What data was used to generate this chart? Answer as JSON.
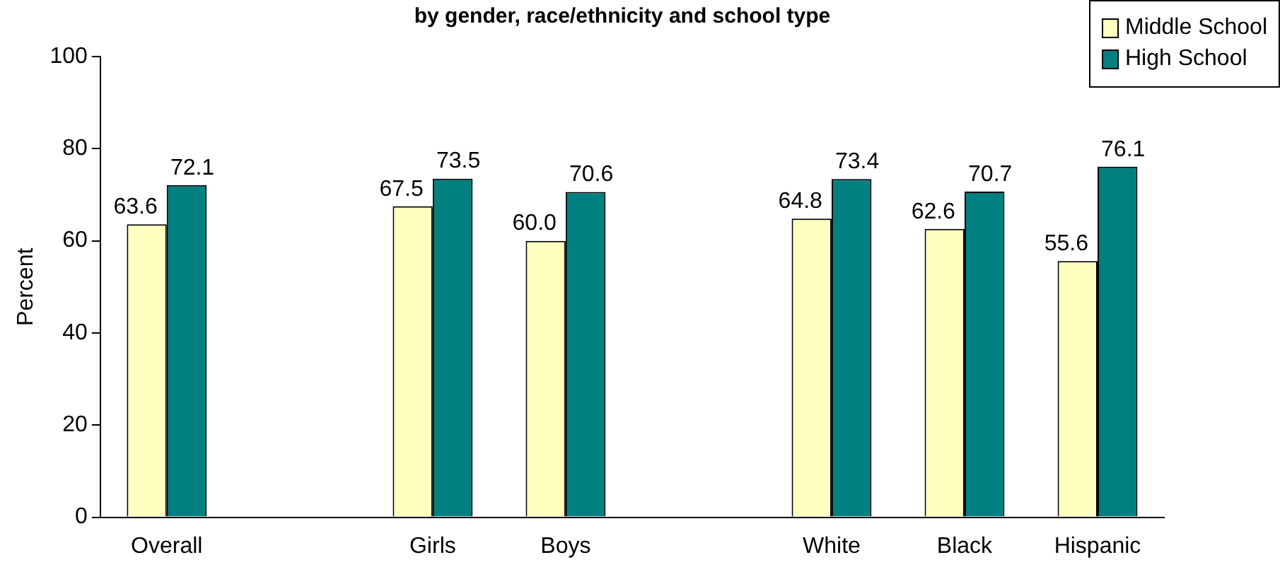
{
  "chart_data": {
    "type": "bar",
    "title": "by gender, race/ethnicity and school type",
    "ylabel": "Percent",
    "categories": [
      "Overall",
      null,
      "Girls",
      "Boys",
      null,
      "White",
      "Black",
      "Hispanic"
    ],
    "series": [
      {
        "name": "Middle School",
        "color": "#ffffc0",
        "values": [
          63.6,
          null,
          67.5,
          60.0,
          null,
          64.8,
          62.6,
          55.6
        ],
        "value_labels": [
          "63.6",
          null,
          "67.5",
          "60.0",
          null,
          "64.8",
          "62.6",
          "55.6"
        ]
      },
      {
        "name": "High School",
        "color": "#008080",
        "values": [
          72.1,
          null,
          73.5,
          70.6,
          null,
          73.4,
          70.7,
          76.1
        ],
        "value_labels": [
          "72.1",
          null,
          "73.5",
          "70.6",
          null,
          "73.4",
          "70.7",
          "76.1"
        ]
      }
    ],
    "ylim": [
      0,
      100
    ],
    "yticks": [
      0,
      20,
      40,
      60,
      80,
      100
    ],
    "grid": false,
    "legend": "top right"
  }
}
